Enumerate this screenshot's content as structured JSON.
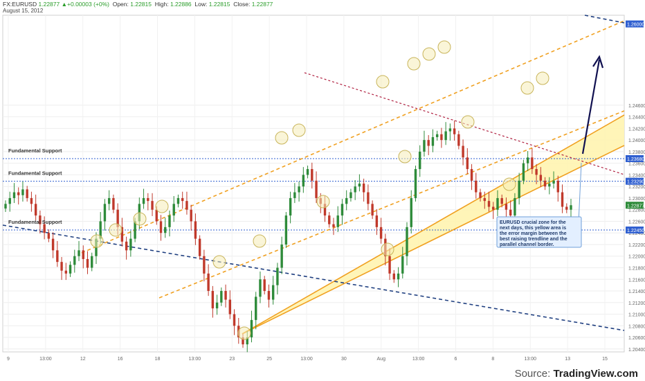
{
  "header": {
    "symbol": "FX:EURUSD",
    "last": "1.22877",
    "change": "▲+0.00003 (+0%)",
    "open_label": "Open:",
    "open": "1.22815",
    "high_label": "High:",
    "high": "1.22886",
    "low_label": "Low:",
    "low": "1.22815",
    "close_label": "Close:",
    "close": "1.22877",
    "date": "August 15, 2012"
  },
  "source": {
    "prefix": "Source:",
    "brand": "TradingView.com"
  },
  "colors": {
    "up": "#2e8b3a",
    "down": "#c0392b",
    "support": "#2f5fd0",
    "channel": "#f0a020",
    "zone": "#fff4b0",
    "resistance": "#b02040",
    "lower": "#1f3f80",
    "arrow": "#101050"
  },
  "chart_data": {
    "type": "candlestick",
    "ylim": [
      1.2035,
      1.2615
    ],
    "y_ticks": [
      "1.20400",
      "1.20600",
      "1.20800",
      "1.21000",
      "1.21200",
      "1.21400",
      "1.21600",
      "1.21800",
      "1.22000",
      "1.22200",
      "1.22400",
      "1.22600",
      "1.22800",
      "1.23000",
      "1.23200",
      "1.23400",
      "1.23600",
      "1.23800",
      "1.24000",
      "1.24200",
      "1.24400",
      "1.24600"
    ],
    "price_tags": [
      {
        "value": 1.26,
        "label": "1.26000",
        "color": "#2f5fd0"
      },
      {
        "value": 1.2368,
        "label": "1.23680",
        "color": "#2f5fd0"
      },
      {
        "value": 1.2329,
        "label": "1.23290",
        "color": "#2f5fd0"
      },
      {
        "value": 1.22877,
        "label": "1.22877",
        "color": "#2e8b3a"
      },
      {
        "value": 1.2245,
        "label": "1.22450",
        "color": "#2f5fd0"
      }
    ],
    "x_labels": [
      "9",
      "13:00",
      "12",
      "16",
      "18",
      "13:00",
      "23",
      "25",
      "13:00",
      "30",
      "Aug",
      "13:00",
      "6",
      "8",
      "13:00",
      "13",
      "15"
    ],
    "support_levels": [
      {
        "value": 1.2368,
        "label": "Fundamental Support"
      },
      {
        "value": 1.2329,
        "label": "Fundamental Support"
      },
      {
        "value": 1.2245,
        "label": "Fundamental Support"
      }
    ],
    "annotation": "EURUSD crucial zone for the next days, this yellow area is the error margin between  the best raising trendline and the parallel channel border.",
    "close_series": [
      1.229,
      1.23,
      1.231,
      1.2305,
      1.2315,
      1.23,
      1.229,
      1.227,
      1.2255,
      1.224,
      1.223,
      1.221,
      1.219,
      1.2175,
      1.217,
      1.2185,
      1.22,
      1.221,
      1.2195,
      1.218,
      1.22,
      1.223,
      1.226,
      1.229,
      1.23,
      1.228,
      1.225,
      1.2225,
      1.221,
      1.223,
      1.226,
      1.229,
      1.23,
      1.2295,
      1.228,
      1.226,
      1.224,
      1.225,
      1.227,
      1.229,
      1.23,
      1.2295,
      1.228,
      1.226,
      1.223,
      1.22,
      1.217,
      1.214,
      1.211,
      1.212,
      1.214,
      1.2125,
      1.21,
      1.208,
      1.206,
      1.2048,
      1.206,
      1.209,
      1.213,
      1.216,
      1.214,
      1.2125,
      1.215,
      1.218,
      1.222,
      1.227,
      1.23,
      1.231,
      1.232,
      1.234,
      1.235,
      1.233,
      1.23,
      1.229,
      1.227,
      1.2255,
      1.225,
      1.227,
      1.229,
      1.23,
      1.231,
      1.232,
      1.2325,
      1.231,
      1.229,
      1.227,
      1.225,
      1.223,
      1.22,
      1.217,
      1.216,
      1.217,
      1.22,
      1.225,
      1.23,
      1.235,
      1.238,
      1.24,
      1.239,
      1.2405,
      1.241,
      1.24,
      1.2415,
      1.242,
      1.241,
      1.239,
      1.237,
      1.235,
      1.233,
      1.231,
      1.23,
      1.2295,
      1.2285,
      1.228,
      1.23,
      1.229,
      1.228,
      1.227,
      1.23,
      1.233,
      1.236,
      1.237,
      1.235,
      1.234,
      1.233,
      1.232,
      1.2325,
      1.233,
      1.231,
      1.2285,
      1.228,
      1.22877
    ]
  }
}
